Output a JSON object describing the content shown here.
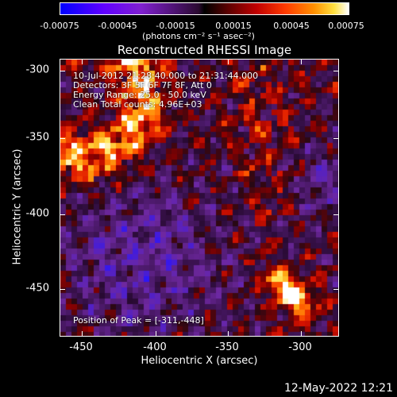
{
  "colorbar": {
    "ticks": [
      "-0.00075",
      "-0.00045",
      "-0.00015",
      "0.00015",
      "0.00045",
      "0.00075"
    ],
    "unit": "(photons cm⁻² s⁻¹ asec⁻²)"
  },
  "title": "Reconstructed RHESSI Image",
  "info": {
    "time_range": "10-Jul-2012 21:28:40.000 to 21:31:44.000",
    "detectors": "Detectors: 3F 5F 6F 7F 8F, Att 0",
    "energy": "Energy Range: 25.0 - 50.0 keV",
    "clean": "Clean    Total counts: 4.96E+03",
    "peak": "Position of Peak = [-311,-448]"
  },
  "axes": {
    "xlabel": "Heliocentric X (arcsec)",
    "ylabel": "Heliocentric Y (arcsec)",
    "xticks": [
      "-450",
      "-400",
      "-350",
      "-300"
    ],
    "yticks": [
      "-300",
      "-350",
      "-400",
      "-450"
    ]
  },
  "timestamp": "12-May-2022 12:21"
}
